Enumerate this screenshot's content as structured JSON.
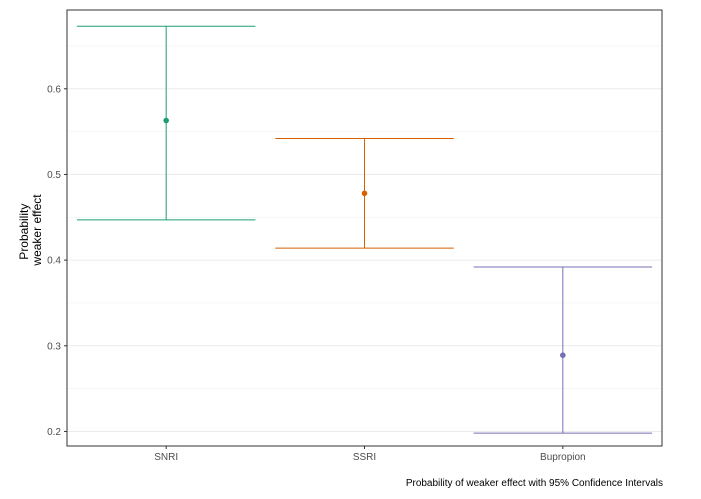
{
  "chart_data": {
    "type": "errorbar",
    "categories": [
      "SNRI",
      "SSRI",
      "Bupropion"
    ],
    "points": [
      {
        "category": "SNRI",
        "estimate": 0.563,
        "lower": 0.447,
        "upper": 0.673
      },
      {
        "category": "SSRI",
        "estimate": 0.478,
        "lower": 0.414,
        "upper": 0.542
      },
      {
        "category": "Bupropion",
        "estimate": 0.289,
        "lower": 0.198,
        "upper": 0.392
      }
    ],
    "colors": [
      "#1b9e77",
      "#d95f02",
      "#7570b3"
    ],
    "ylabel_line1": "Probability",
    "ylabel_line2": "weaker effect",
    "xlabel": "",
    "yticks": [
      0.2,
      0.3,
      0.4,
      0.5,
      0.6
    ],
    "ytick_labels": [
      "0.2",
      "0.3",
      "0.4",
      "0.5",
      "0.6"
    ],
    "ylim": [
      0.183,
      0.692
    ],
    "grid": true,
    "caption": "Probability of weaker effect with 95% Confidence Intervals"
  }
}
